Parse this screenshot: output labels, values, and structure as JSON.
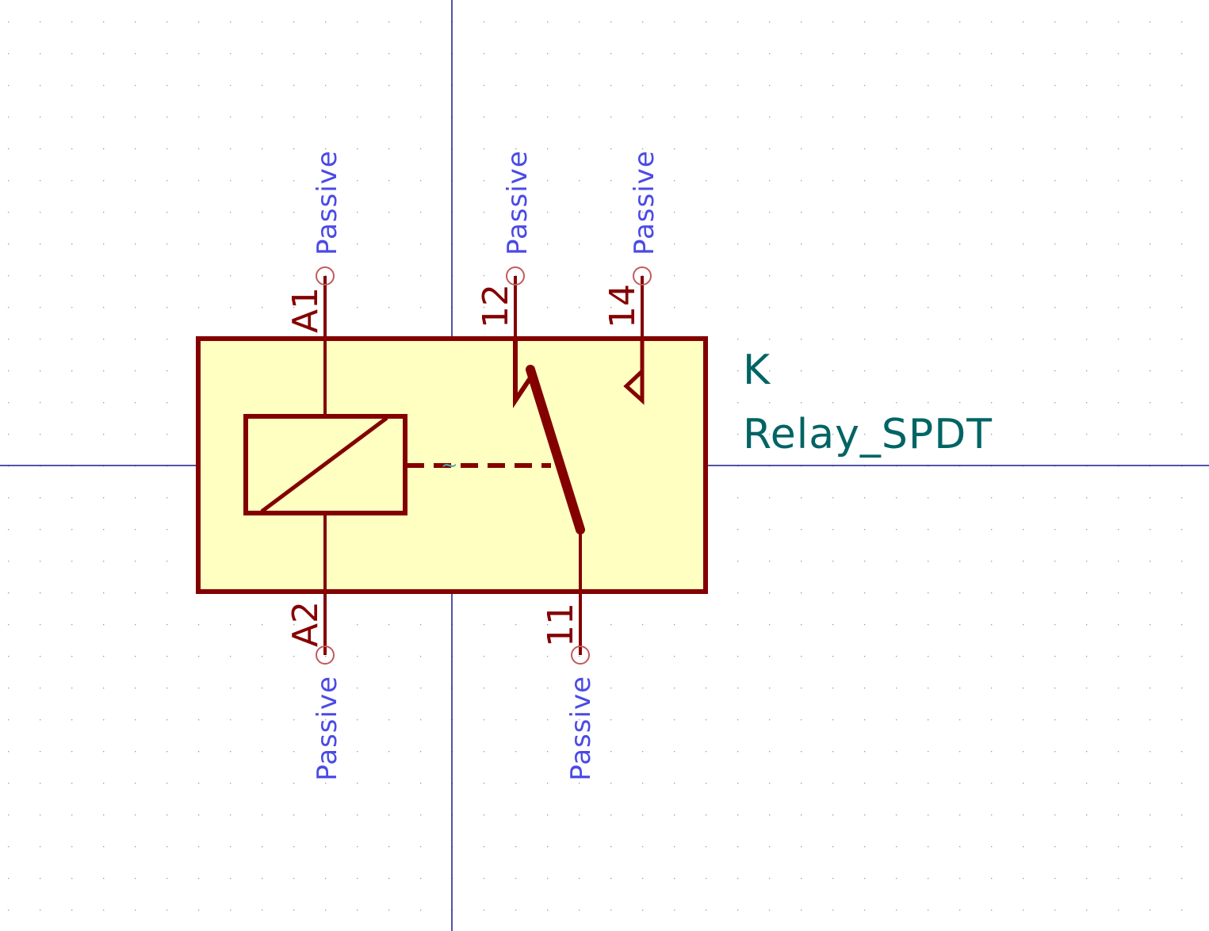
{
  "editor": {
    "colors": {
      "background": "#ffffff",
      "grid_dot": "#9a9a9a",
      "crosshair": "#1a1a8c",
      "body_fill": "#ffffc2",
      "outline": "#840000",
      "pin_type": "#4a4ae6",
      "field_text": "#006464",
      "pin_end": "#c25a5a"
    }
  },
  "symbol": {
    "reference": "K",
    "value": "Relay_SPDT",
    "pins": [
      {
        "number": "A1",
        "type": "Passive"
      },
      {
        "number": "A2",
        "type": "Passive"
      },
      {
        "number": "12",
        "type": "Passive"
      },
      {
        "number": "11",
        "type": "Passive"
      },
      {
        "number": "14",
        "type": "Passive"
      }
    ]
  }
}
